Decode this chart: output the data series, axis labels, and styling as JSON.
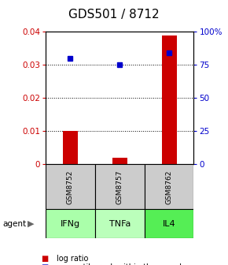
{
  "title": "GDS501 / 8712",
  "samples": [
    "GSM8752",
    "GSM8757",
    "GSM8762"
  ],
  "agents": [
    "IFNg",
    "TNFa",
    "IL4"
  ],
  "log_ratio": [
    0.01,
    0.002,
    0.039
  ],
  "percentile_pct": [
    80,
    75,
    84
  ],
  "ylim_left": [
    0,
    0.04
  ],
  "ylim_right": [
    0,
    100
  ],
  "yticks_left": [
    0,
    0.01,
    0.02,
    0.03,
    0.04
  ],
  "yticks_right": [
    0,
    25,
    50,
    75,
    100
  ],
  "ytick_labels_left": [
    "0",
    "0.01",
    "0.02",
    "0.03",
    "0.04"
  ],
  "ytick_labels_right": [
    "0",
    "25",
    "50",
    "75",
    "100%"
  ],
  "bar_color": "#cc0000",
  "dot_color": "#0000cc",
  "sample_bg": "#cccccc",
  "agent_colors": [
    "#bbffbb",
    "#bbffbb",
    "#66ee66"
  ],
  "bar_width": 0.3,
  "x_positions": [
    1,
    2,
    3
  ],
  "title_fontsize": 11,
  "tick_fontsize": 7.5,
  "sample_fontsize": 6.5,
  "agent_fontsize": 8,
  "legend_fontsize": 7
}
